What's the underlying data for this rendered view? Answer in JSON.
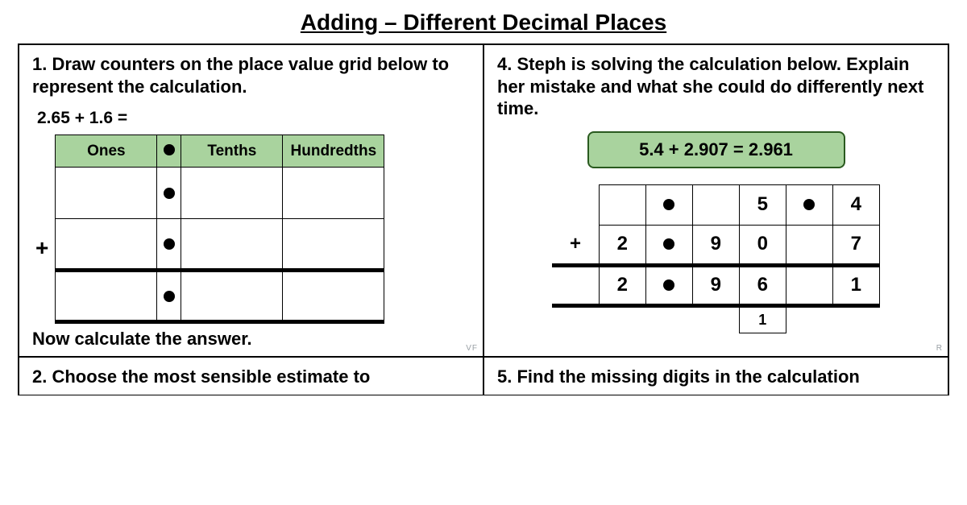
{
  "title": "Adding – Different Decimal Places",
  "q1": {
    "text": "1. Draw counters on the place value grid below to represent the calculation.",
    "equation": "2.65 + 1.6 =",
    "headers": {
      "ones": "Ones",
      "tenths": "Tenths",
      "hundredths": "Hundredths"
    },
    "followup": "Now calculate the answer.",
    "corner": "VF",
    "colors": {
      "header_bg": "#a9d39e"
    }
  },
  "q4": {
    "text": "4. Steph is solving the calculation below. Explain her mistake and what she could do differently next time.",
    "box": "5.4 + 2.907 = 2.961",
    "box_bg": "#a9d39e",
    "box_border": "#2a5a1f",
    "col": {
      "r1": [
        "",
        "",
        "",
        "5",
        "4"
      ],
      "r2": [
        "+",
        "2",
        "9",
        "0",
        "7"
      ],
      "r3": [
        "",
        "2",
        "9",
        "6",
        "1"
      ],
      "carry": [
        "",
        "",
        "",
        "1",
        ""
      ]
    },
    "corner": "R"
  },
  "q2": {
    "text": "2. Choose the most sensible estimate to"
  },
  "q5": {
    "text": "5. Find the missing digits in the calculation"
  }
}
